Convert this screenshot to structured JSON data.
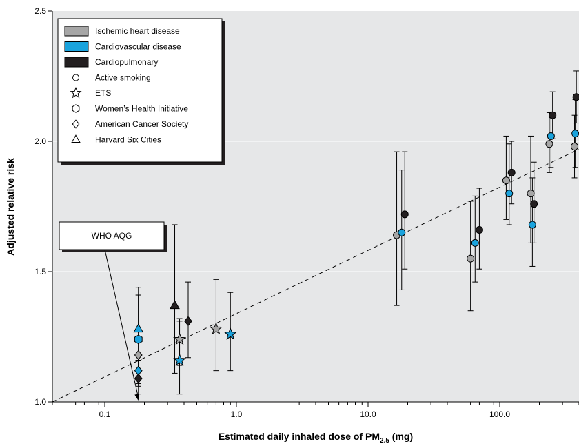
{
  "chart_data": {
    "type": "scatter",
    "xlabel": "Estimated daily inhaled dose of PM",
    "xlabel_sub": "2.5",
    "xlabel_unit": " (mg)",
    "ylabel": "Adjusted relative risk",
    "x_scale": "log",
    "xlim": [
      0.04,
      400
    ],
    "ylim": [
      1.0,
      2.5
    ],
    "x_major_ticks": [
      0.1,
      1.0,
      10.0,
      100.0
    ],
    "x_tick_labels": [
      "0.1",
      "1.0",
      "10.0",
      "100.0"
    ],
    "y_ticks": [
      1.0,
      1.5,
      2.0,
      2.5
    ],
    "y_tick_labels": [
      "1.0",
      "1.5",
      "2.0",
      "2.5"
    ],
    "grid": "horizontal",
    "legend_position": "top-left",
    "legend": [
      {
        "label": "Ischemic heart disease",
        "kind": "fill",
        "color": "#a6a6a6"
      },
      {
        "label": "Cardiovascular disease",
        "kind": "fill",
        "color": "#1aa3dd"
      },
      {
        "label": "Cardiopulmonary",
        "kind": "fill",
        "color": "#231f20"
      },
      {
        "label": "Active smoking",
        "kind": "marker",
        "marker": "circle"
      },
      {
        "label": "ETS",
        "kind": "marker",
        "marker": "star"
      },
      {
        "label": "Women’s Health Initiative",
        "kind": "marker",
        "marker": "hexagon"
      },
      {
        "label": "American Cancer Society",
        "kind": "marker",
        "marker": "diamond"
      },
      {
        "label": "Harvard Six Cities",
        "kind": "marker",
        "marker": "triangle"
      }
    ],
    "annotation": {
      "text": "WHO AQG",
      "x": 0.18
    },
    "trend_line": {
      "style": "dashed",
      "points": [
        [
          0.04,
          1.0
        ],
        [
          400,
          1.97
        ]
      ]
    },
    "points": [
      {
        "x": 0.18,
        "y": 1.28,
        "lo": 1.16,
        "hi": 1.41,
        "disease": "Cardiovascular disease",
        "study": "Harvard Six Cities"
      },
      {
        "x": 0.18,
        "y": 1.24,
        "lo": 1.09,
        "hi": 1.41,
        "disease": "Cardiovascular disease",
        "study": "Women’s Health Initiative"
      },
      {
        "x": 0.18,
        "y": 1.18,
        "lo": 1.06,
        "hi": 1.44,
        "disease": "Ischemic heart disease",
        "study": "American Cancer Society"
      },
      {
        "x": 0.18,
        "y": 1.12,
        "lo": 1.07,
        "hi": 1.16,
        "disease": "Cardiovascular disease",
        "study": "American Cancer Society"
      },
      {
        "x": 0.18,
        "y": 1.09,
        "lo": 1.03,
        "hi": 1.16,
        "disease": "Cardiopulmonary",
        "study": "American Cancer Society"
      },
      {
        "x": 0.34,
        "y": 1.37,
        "lo": 1.11,
        "hi": 1.68,
        "disease": "Cardiopulmonary",
        "study": "Harvard Six Cities"
      },
      {
        "x": 0.37,
        "y": 1.24,
        "lo": 1.14,
        "hi": 1.32,
        "disease": "Ischemic heart disease",
        "study": "ETS"
      },
      {
        "x": 0.37,
        "y": 1.16,
        "lo": 1.03,
        "hi": 1.31,
        "disease": "Cardiovascular disease",
        "study": "ETS"
      },
      {
        "x": 0.43,
        "y": 1.31,
        "lo": 1.17,
        "hi": 1.46,
        "disease": "Cardiopulmonary",
        "study": "American Cancer Society"
      },
      {
        "x": 0.7,
        "y": 1.28,
        "lo": 1.12,
        "hi": 1.47,
        "disease": "Ischemic heart disease",
        "study": "ETS"
      },
      {
        "x": 0.9,
        "y": 1.26,
        "lo": 1.12,
        "hi": 1.42,
        "disease": "Cardiovascular disease",
        "study": "ETS"
      },
      {
        "x": 16.5,
        "y": 1.64,
        "lo": 1.37,
        "hi": 1.96,
        "disease": "Ischemic heart disease",
        "study": "Active smoking"
      },
      {
        "x": 18.0,
        "y": 1.65,
        "lo": 1.43,
        "hi": 1.89,
        "disease": "Cardiovascular disease",
        "study": "Active smoking"
      },
      {
        "x": 19.0,
        "y": 1.72,
        "lo": 1.51,
        "hi": 1.96,
        "disease": "Cardiopulmonary",
        "study": "Active smoking"
      },
      {
        "x": 60,
        "y": 1.55,
        "lo": 1.35,
        "hi": 1.77,
        "disease": "Ischemic heart disease",
        "study": "Active smoking"
      },
      {
        "x": 65,
        "y": 1.61,
        "lo": 1.46,
        "hi": 1.79,
        "disease": "Cardiovascular disease",
        "study": "Active smoking"
      },
      {
        "x": 70,
        "y": 1.66,
        "lo": 1.51,
        "hi": 1.82,
        "disease": "Cardiopulmonary",
        "study": "Active smoking"
      },
      {
        "x": 112,
        "y": 1.85,
        "lo": 1.7,
        "hi": 2.02,
        "disease": "Ischemic heart disease",
        "study": "Active smoking"
      },
      {
        "x": 118,
        "y": 1.8,
        "lo": 1.68,
        "hi": 1.99,
        "disease": "Cardiovascular disease",
        "study": "Active smoking"
      },
      {
        "x": 123,
        "y": 1.88,
        "lo": 1.76,
        "hi": 2.0,
        "disease": "Cardiopulmonary",
        "study": "Active smoking"
      },
      {
        "x": 172,
        "y": 1.8,
        "lo": 1.61,
        "hi": 2.02,
        "disease": "Ischemic heart disease",
        "study": "Active smoking"
      },
      {
        "x": 177,
        "y": 1.68,
        "lo": 1.52,
        "hi": 1.86,
        "disease": "Cardiovascular disease",
        "study": "Active smoking"
      },
      {
        "x": 182,
        "y": 1.76,
        "lo": 1.61,
        "hi": 1.92,
        "disease": "Cardiopulmonary",
        "study": "Active smoking"
      },
      {
        "x": 238,
        "y": 1.99,
        "lo": 1.88,
        "hi": 2.11,
        "disease": "Ischemic heart disease",
        "study": "Active smoking"
      },
      {
        "x": 245,
        "y": 2.02,
        "lo": 1.9,
        "hi": 2.11,
        "disease": "Cardiovascular disease",
        "study": "Active smoking"
      },
      {
        "x": 252,
        "y": 2.1,
        "lo": 2.01,
        "hi": 2.19,
        "disease": "Cardiopulmonary",
        "study": "Active smoking"
      },
      {
        "x": 370,
        "y": 1.98,
        "lo": 1.86,
        "hi": 2.1,
        "disease": "Ischemic heart disease",
        "study": "Active smoking"
      },
      {
        "x": 375,
        "y": 2.03,
        "lo": 1.9,
        "hi": 2.16,
        "disease": "Cardiovascular disease",
        "study": "Active smoking"
      },
      {
        "x": 382,
        "y": 2.17,
        "lo": 2.07,
        "hi": 2.27,
        "disease": "Cardiopulmonary",
        "study": "Active smoking"
      }
    ]
  }
}
